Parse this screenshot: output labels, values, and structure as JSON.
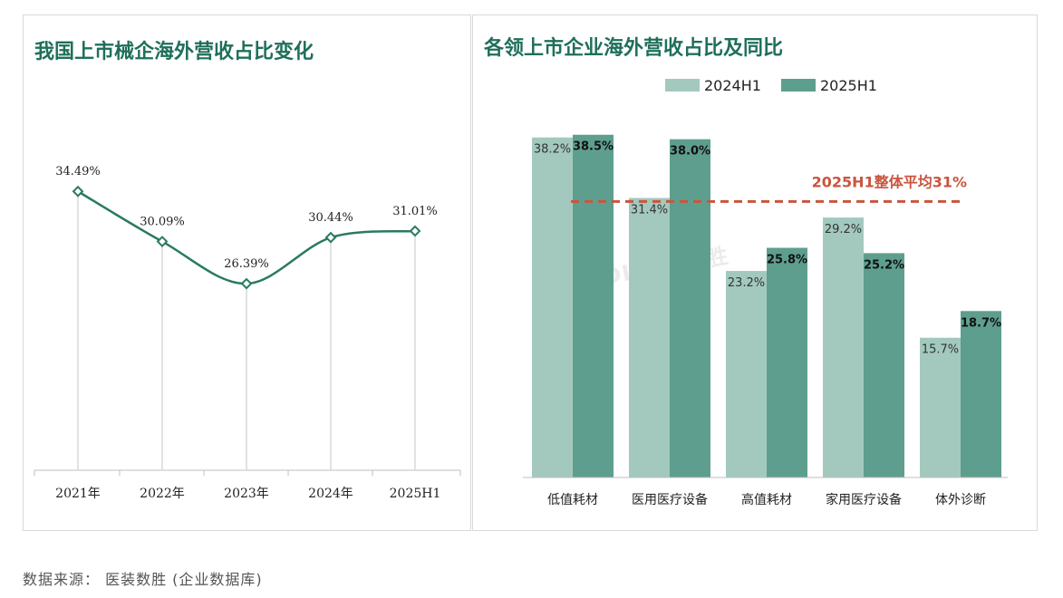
{
  "chart_data": [
    {
      "type": "line",
      "title": "我国上市械企海外营收占比变化",
      "categories": [
        "2021年",
        "2022年",
        "2023年",
        "2024年",
        "2025H1"
      ],
      "values": [
        34.49,
        30.09,
        26.39,
        30.44,
        31.01
      ],
      "data_labels": [
        "34.49%",
        "30.09%",
        "26.39%",
        "30.44%",
        "31.01%"
      ],
      "ylim": [
        10,
        40
      ],
      "grid": false,
      "colors": {
        "line": "#2a7a62",
        "drop_lines": "#d9d9d9",
        "axis": "#bfbfbf"
      }
    },
    {
      "type": "bar",
      "title": "各领上市企业海外营收占比及同比",
      "categories": [
        "低值耗材",
        "医用医疗设备",
        "高值耗材",
        "家用医疗设备",
        "体外诊断"
      ],
      "series": [
        {
          "name": "2024H1",
          "values": [
            38.2,
            31.4,
            23.2,
            29.2,
            15.7
          ],
          "labels": [
            "38.2%",
            "31.4%",
            "23.2%",
            "29.2%",
            "15.7%"
          ],
          "color": "#a3c9bf"
        },
        {
          "name": "2025H1",
          "values": [
            38.5,
            38.0,
            25.8,
            25.2,
            18.7
          ],
          "labels": [
            "38.5%",
            "38.0%",
            "25.8%",
            "25.2%",
            "18.7%"
          ],
          "color": "#5e9e8e"
        }
      ],
      "ylim": [
        0,
        40
      ],
      "legend": "top-center",
      "reference_line": {
        "value": 31,
        "label": "2025H1整体平均31%",
        "color": "#c9553f",
        "style": "dashed"
      },
      "watermark": "MDDI 医装数胜"
    }
  ],
  "footer": {
    "source": "数据来源：  医装数胜  (企业数据库)"
  }
}
